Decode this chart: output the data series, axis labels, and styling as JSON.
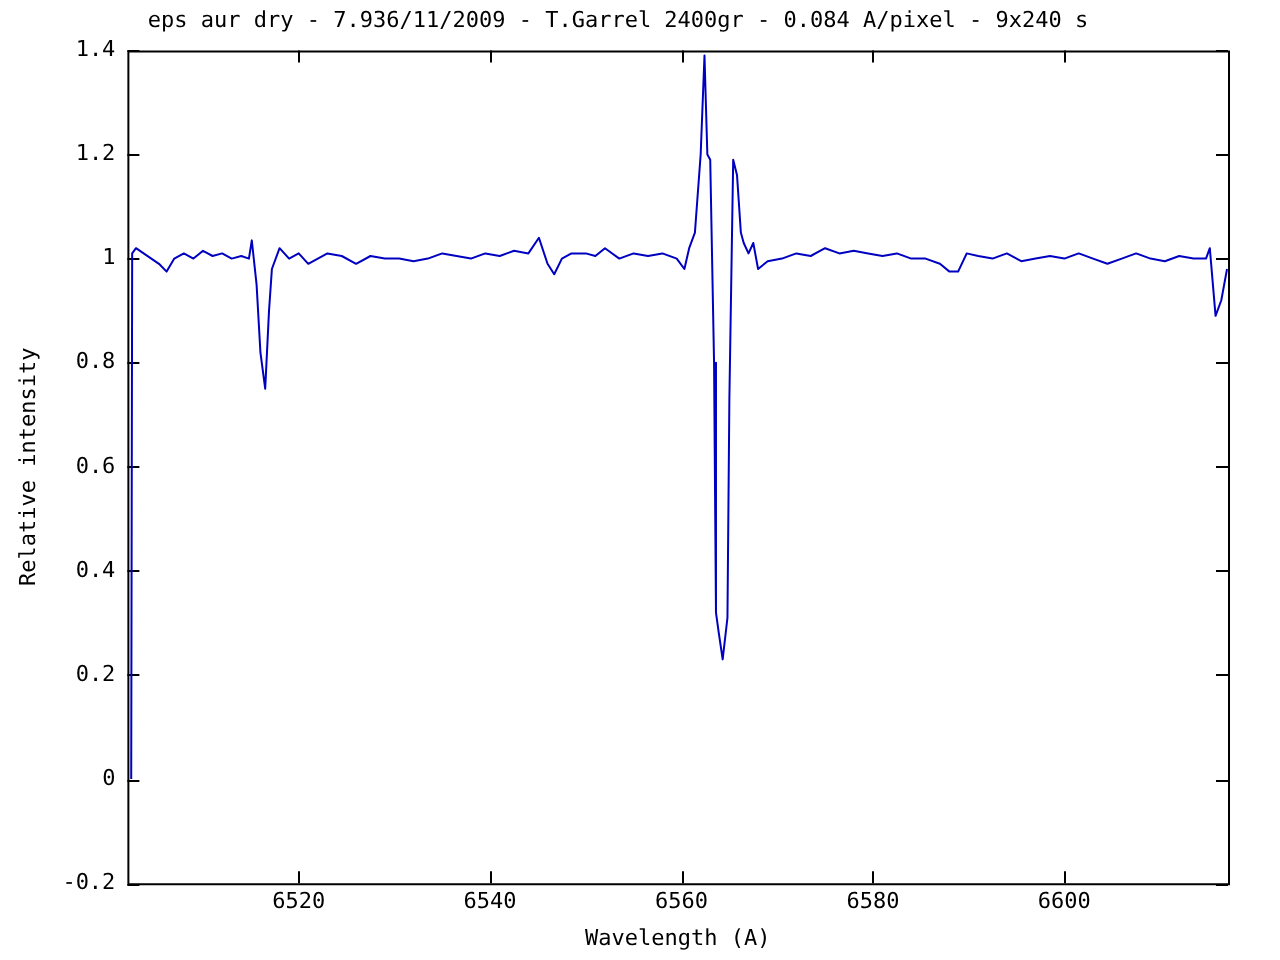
{
  "chart_data": {
    "type": "line",
    "title": "eps aur dry - 7.936/11/2009 - T.Garrel 2400gr - 0.084 A/pixel - 9x240 s",
    "xlabel": "Wavelength (A)",
    "ylabel": "Relative intensity",
    "x": [
      6502.5,
      6502.6,
      6503.0,
      6503.8,
      6504.6,
      6505.4,
      6506.2,
      6507.0,
      6508.0,
      6509.0,
      6510.0,
      6511.0,
      6512.0,
      6513.0,
      6514.0,
      6514.8,
      6515.1,
      6515.6,
      6516.0,
      6516.5,
      6516.9,
      6517.2,
      6518.0,
      6519.0,
      6520.0,
      6521.0,
      6522.0,
      6523.0,
      6524.5,
      6526.0,
      6527.5,
      6529.0,
      6530.5,
      6532.0,
      6533.5,
      6535.0,
      6536.5,
      6538.0,
      6539.5,
      6541.0,
      6542.5,
      6544.0,
      6545.1,
      6546.0,
      6546.7,
      6547.5,
      6548.5,
      6550.0,
      6551.0,
      6552.0,
      6553.5,
      6555.0,
      6556.5,
      6558.0,
      6559.5,
      6560.3,
      6560.8,
      6561.4,
      6562.0,
      6562.4,
      6562.7,
      6563.0,
      6563.4,
      6563.6,
      6563.9,
      6564.3,
      6564.8,
      6565.0,
      6565.4,
      6565.8,
      6566.2,
      6566.5,
      6567.0,
      6567.5,
      6568.0,
      6569.0,
      6570.5,
      6572.0,
      6573.5,
      6575.0,
      6576.5,
      6578.0,
      6579.5,
      6581.0,
      6582.5,
      6584.0,
      6585.5,
      6587.0,
      6588.0,
      6588.9,
      6589.8,
      6591.0,
      6592.5,
      6594.0,
      6595.5,
      6597.0,
      6598.5,
      6600.0,
      6601.5,
      6603.0,
      6604.5,
      6606.0,
      6607.5,
      6609.0,
      6610.5,
      6612.0,
      6613.5,
      6614.8,
      6615.2,
      6615.8,
      6616.4,
      6617.0
    ],
    "series": [
      {
        "color": "#0000c0",
        "values": [
          0,
          1.01,
          1.02,
          1.01,
          1.0,
          0.99,
          0.975,
          1.0,
          1.01,
          1.0,
          1.015,
          1.005,
          1.01,
          1.0,
          1.005,
          1.0,
          1.035,
          0.95,
          0.82,
          0.75,
          0.9,
          0.98,
          1.02,
          1.0,
          1.01,
          0.99,
          1.0,
          1.01,
          1.005,
          0.99,
          1.005,
          1.0,
          1.0,
          0.995,
          1.0,
          1.01,
          1.005,
          1.0,
          1.01,
          1.005,
          1.015,
          1.01,
          1.04,
          0.99,
          0.97,
          1.0,
          1.01,
          1.01,
          1.005,
          1.02,
          1.0,
          1.01,
          1.005,
          1.01,
          1.0,
          0.98,
          1.02,
          1.05,
          1.2,
          1.39,
          1.2,
          1.19,
          0.8,
          0.32,
          0.28,
          0.23,
          0.31,
          0.73,
          1.19,
          1.16,
          1.05,
          1.03,
          1.01,
          1.03,
          0.98,
          0.995,
          1.0,
          1.01,
          1.005,
          1.02,
          1.01,
          1.015,
          1.01,
          1.005,
          1.01,
          1.0,
          1.0,
          0.99,
          0.975,
          0.975,
          1.01,
          1.005,
          1.0,
          1.01,
          0.995,
          1.0,
          1.005,
          1.0,
          1.01,
          1.0,
          0.99,
          1.0,
          1.01,
          1.0,
          0.995,
          1.005,
          1.0,
          1.0,
          1.02,
          0.89,
          0.92,
          0.98
        ]
      }
    ],
    "xlim": [
      6502.1,
      6617.1
    ],
    "xticks": [
      6520,
      6540,
      6560,
      6580,
      6600
    ],
    "ylim": [
      -0.2,
      1.4
    ],
    "yticks": [
      -0.2,
      0,
      0.2,
      0.4,
      0.6,
      0.8,
      1,
      1.2,
      1.4
    ],
    "grid": false,
    "legend": false,
    "marker": "none",
    "line_style": "solid"
  }
}
